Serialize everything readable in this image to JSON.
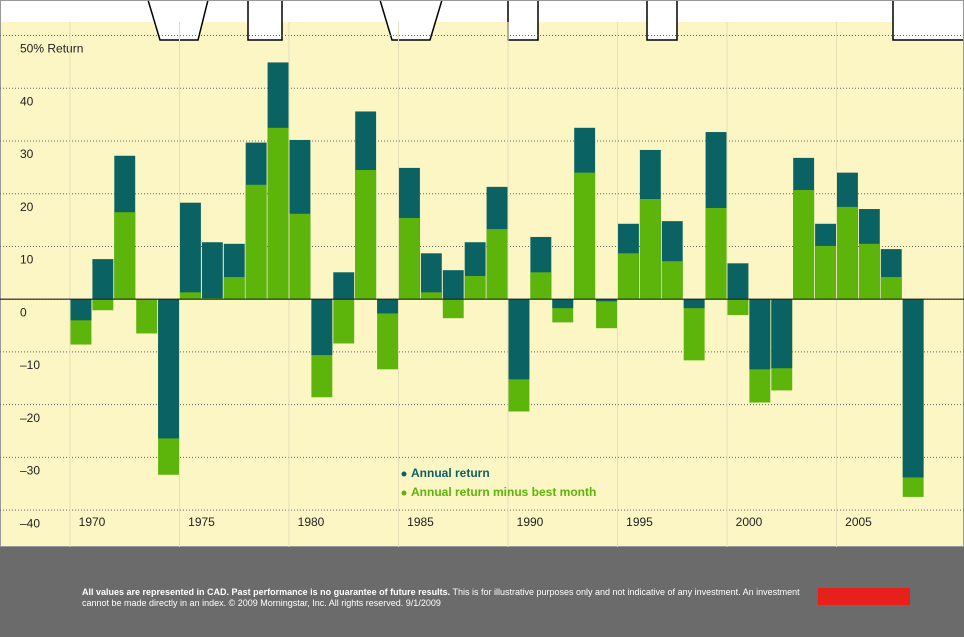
{
  "chart_data": {
    "type": "bar",
    "categories": [
      "1970",
      null,
      null,
      null,
      null,
      "1975",
      null,
      null,
      null,
      null,
      "1980",
      null,
      null,
      null,
      null,
      "1985",
      null,
      null,
      null,
      null,
      "1990",
      null,
      null,
      null,
      null,
      "1995",
      null,
      null,
      null,
      null,
      "2000",
      null,
      null,
      null,
      null,
      "2005",
      null,
      null,
      null
    ],
    "series": [
      {
        "name": "Annual return",
        "color": "#0b6262",
        "values": [
          -4.0,
          7.6,
          27.2,
          0,
          -26.4,
          18.3,
          10.8,
          10.5,
          29.7,
          44.9,
          30.2,
          -10.6,
          5.1,
          35.6,
          -2.7,
          24.9,
          8.7,
          5.5,
          10.8,
          21.3,
          -15.2,
          11.8,
          -1.7,
          32.5,
          -0.4,
          14.3,
          28.3,
          14.8,
          -1.7,
          31.7,
          6.8,
          -13.3,
          -13.1,
          26.8,
          14.3,
          24.0,
          17.1,
          9.5,
          -33.8
        ]
      },
      {
        "name": "Annual return minus best month",
        "color": "#5db40a",
        "values": [
          -8.6,
          -2.1,
          16.5,
          -6.5,
          -33.3,
          1.3,
          0.2,
          4.2,
          21.7,
          32.5,
          16.2,
          -18.6,
          -8.4,
          24.5,
          -13.3,
          15.4,
          1.3,
          -3.6,
          4.4,
          13.3,
          -21.3,
          5.1,
          -4.4,
          24.0,
          -5.5,
          8.7,
          19.0,
          7.2,
          -11.6,
          17.3,
          -3.0,
          -19.6,
          -17.3,
          20.7,
          10.1,
          17.5,
          10.5,
          4.2,
          -37.5
        ]
      }
    ],
    "ylim": [
      -47,
      52
    ],
    "yticks": [
      {
        "value": 50,
        "label": "50% Return"
      },
      40,
      30,
      20,
      10,
      0,
      {
        "value": -10,
        "label": "–10"
      },
      {
        "value": -20,
        "label": "–20"
      },
      {
        "value": -30,
        "label": "–30"
      },
      {
        "value": -40,
        "label": "–40"
      }
    ],
    "grid": true,
    "note_bold": "All values are represented in CAD. Past performance is no guarantee of future results.",
    "note": "This is for illustrative purposes only and not indicative of any investment. An investment cannot be made directly in an index. © 2009 Morningstar, Inc. All rights reserved. 9/1/2009"
  }
}
